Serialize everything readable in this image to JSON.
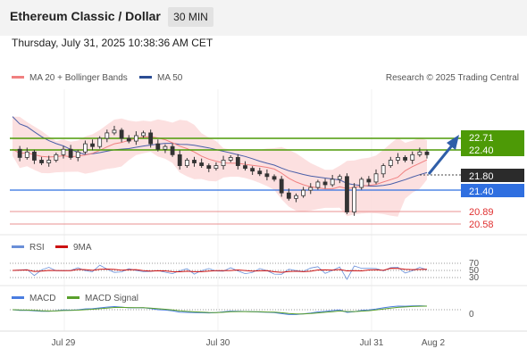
{
  "header": {
    "title": "Ethereum Classic / Dollar",
    "timeframe": "30 MIN",
    "datetime": "Thursday, July 31, 2025 10:38:36 AM CET"
  },
  "legend": {
    "ma20_label": "MA 20 + Bollinger Bands",
    "ma50_label": "MA 50",
    "credit": "Research © 2025 Trading Central",
    "colors": {
      "ma20": "#f08080",
      "ma50": "#4a5fa8",
      "bands": "#fbd9d9"
    }
  },
  "levels": [
    {
      "value": "22.71",
      "kind": "resistance-target",
      "color": "#4d9a06",
      "text_color": "#ffffff"
    },
    {
      "value": "22.40",
      "kind": "resistance",
      "color": "#4d9a06",
      "text_color": "#ffffff"
    },
    {
      "value": "21.80",
      "kind": "last-price",
      "color": "#2b2b2b",
      "text_color": "#ffffff"
    },
    {
      "value": "21.40",
      "kind": "pivot",
      "color": "#2f6fe0",
      "text_color": "#ffffff"
    },
    {
      "value": "20.89",
      "kind": "support",
      "color": "#e06060",
      "text_color": "#e03030"
    },
    {
      "value": "20.58",
      "kind": "support",
      "color": "#e06060",
      "text_color": "#e03030"
    }
  ],
  "rsi": {
    "label": "RSI",
    "ma_label": "9MA",
    "levels": [
      "70",
      "50",
      "30"
    ],
    "colors": {
      "rsi": "#6a8fd8",
      "ma": "#cc1111"
    }
  },
  "macd": {
    "label": "MACD",
    "signal_label": "MACD Signal",
    "zero_label": "0",
    "colors": {
      "macd": "#4a7de0",
      "signal": "#5aa02c"
    }
  },
  "x_axis": {
    "ticks": [
      "Jul 29",
      "Jul 30",
      "Jul 31",
      "Aug 2"
    ]
  },
  "chart_data": {
    "type": "candlestick",
    "title": "Ethereum Classic / Dollar",
    "timeframe": "30 MIN",
    "y_range": [
      20.35,
      23.0
    ],
    "price_series_approx": [
      21.9,
      21.75,
      21.85,
      21.7,
      21.65,
      21.7,
      21.8,
      21.9,
      21.75,
      21.85,
      22.0,
      21.95,
      22.1,
      22.2,
      22.25,
      22.1,
      22.05,
      22.15,
      22.2,
      22.0,
      21.9,
      21.95,
      21.8,
      21.6,
      21.7,
      21.65,
      21.6,
      21.55,
      21.6,
      21.7,
      21.75,
      21.6,
      21.55,
      21.5,
      21.45,
      21.4,
      21.35,
      21.1,
      21.0,
      21.05,
      21.15,
      21.2,
      21.3,
      21.25,
      21.35,
      21.4,
      20.75,
      21.2,
      21.35,
      21.3,
      21.45,
      21.6,
      21.7,
      21.75,
      21.7,
      21.8,
      21.85,
      21.8
    ],
    "projection": {
      "from": 21.8,
      "to": 22.71
    },
    "series": [
      {
        "name": "MA 20 + Bollinger Bands",
        "color": "#f08080"
      },
      {
        "name": "MA 50",
        "color": "#4a5fa8"
      }
    ]
  }
}
